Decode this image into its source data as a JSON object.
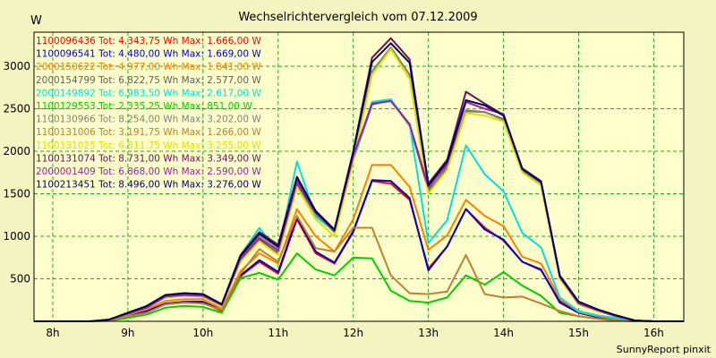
{
  "chart_data": {
    "type": "line",
    "title": "Wechselrichtervergleich vom 07.12.2009",
    "ylabel": "W",
    "xlabel": "",
    "footer": "SunnyReport pinxit",
    "xlim": [
      7.75,
      16.4
    ],
    "ylim": [
      0,
      3400
    ],
    "x_ticks": [
      {
        "label": "8h",
        "value": 8
      },
      {
        "label": "9h",
        "value": 9
      },
      {
        "label": "10h",
        "value": 10
      },
      {
        "label": "11h",
        "value": 11
      },
      {
        "label": "12h",
        "value": 12
      },
      {
        "label": "13h",
        "value": 13
      },
      {
        "label": "14h",
        "value": 14
      },
      {
        "label": "15h",
        "value": 15
      },
      {
        "label": "16h",
        "value": 16
      }
    ],
    "y_ticks": [
      500,
      1000,
      1500,
      2000,
      2500,
      3000
    ],
    "grid": true,
    "legend_position": "top-left",
    "x": [
      7.75,
      8.0,
      8.25,
      8.5,
      8.75,
      9.0,
      9.25,
      9.5,
      9.75,
      10.0,
      10.25,
      10.5,
      10.75,
      11.0,
      11.25,
      11.5,
      11.75,
      12.0,
      12.25,
      12.5,
      12.75,
      13.0,
      13.25,
      13.5,
      13.75,
      14.0,
      14.25,
      14.5,
      14.75,
      15.0,
      15.25,
      15.5,
      15.75,
      16.0,
      16.25,
      16.4
    ],
    "series": [
      {
        "name": "1100096436 Tot: 4.343,75 Wh Max: 1.666,00 W",
        "color": "#ff0000",
        "values": [
          0,
          0,
          0,
          0,
          10,
          70,
          110,
          200,
          220,
          220,
          120,
          530,
          700,
          560,
          1200,
          800,
          680,
          1050,
          1650,
          1620,
          1430,
          620,
          880,
          1320,
          1100,
          950,
          700,
          600,
          240,
          100,
          50,
          20,
          5,
          0,
          0,
          0
        ]
      },
      {
        "name": "1100096541 Tot: 4.480,00 Wh Max: 1.669,00 W",
        "color": "#0000c8",
        "values": [
          0,
          0,
          0,
          0,
          10,
          70,
          120,
          210,
          230,
          230,
          130,
          540,
          720,
          580,
          1220,
          820,
          690,
          1060,
          1660,
          1650,
          1450,
          600,
          880,
          1320,
          1080,
          960,
          700,
          610,
          220,
          100,
          50,
          20,
          5,
          0,
          0,
          0
        ]
      },
      {
        "name": "2000150622 Tot: 4.977,00 Wh Max: 1.841,00 W",
        "color": "#ff8000",
        "values": [
          0,
          0,
          0,
          0,
          10,
          80,
          140,
          240,
          260,
          260,
          150,
          590,
          800,
          680,
          1320,
          1000,
          820,
          1200,
          1840,
          1840,
          1580,
          840,
          1010,
          1430,
          1240,
          1120,
          760,
          680,
          270,
          110,
          60,
          30,
          5,
          0,
          0,
          0
        ]
      },
      {
        "name": "2000154799 Tot: 6.822,75 Wh Max: 2.577,00 W",
        "color": "#606060",
        "values": [
          0,
          0,
          0,
          0,
          20,
          90,
          160,
          280,
          300,
          290,
          180,
          720,
          960,
          800,
          1620,
          1250,
          1050,
          1900,
          2550,
          2600,
          2300,
          1550,
          1800,
          2480,
          2460,
          2380,
          1780,
          1630,
          520,
          200,
          120,
          60,
          10,
          0,
          0,
          0
        ]
      },
      {
        "name": "2000149892 Tot: 6.983,50 Wh Max: 2.617,00 W",
        "color": "#00e0e0",
        "values": [
          0,
          0,
          0,
          0,
          20,
          100,
          170,
          300,
          330,
          320,
          190,
          780,
          1100,
          820,
          1880,
          1230,
          1060,
          1900,
          2580,
          2610,
          2310,
          920,
          1190,
          2070,
          1730,
          1530,
          1040,
          870,
          280,
          120,
          70,
          40,
          10,
          0,
          0,
          0
        ]
      },
      {
        "name": "1100129553 Tot: 2.335,25 Wh Max: 851,00 W",
        "color": "#00d000",
        "values": [
          0,
          0,
          0,
          0,
          5,
          40,
          80,
          160,
          180,
          170,
          100,
          510,
          570,
          490,
          800,
          610,
          540,
          750,
          740,
          360,
          240,
          220,
          280,
          540,
          430,
          580,
          420,
          300,
          100,
          60,
          30,
          10,
          0,
          0,
          0,
          0
        ]
      },
      {
        "name": "1100130966 Tot: 8.254,00 Wh Max: 3.202,00 W",
        "color": "#808080",
        "values": [
          0,
          0,
          0,
          0,
          20,
          100,
          170,
          310,
          320,
          310,
          190,
          760,
          1010,
          860,
          1650,
          1260,
          1060,
          1960,
          2940,
          3220,
          2900,
          1520,
          1830,
          2470,
          2460,
          2370,
          1770,
          1620,
          520,
          220,
          130,
          60,
          10,
          0,
          0,
          0
        ]
      },
      {
        "name": "1100131006 Tot: 3.191,75 Wh Max: 1.266,00 W",
        "color": "#c08030",
        "values": [
          0,
          0,
          0,
          0,
          10,
          60,
          100,
          200,
          220,
          210,
          130,
          560,
          850,
          700,
          1240,
          860,
          820,
          1100,
          1100,
          540,
          330,
          320,
          350,
          780,
          320,
          280,
          290,
          210,
          120,
          60,
          30,
          10,
          0,
          0,
          0,
          0
        ]
      },
      {
        "name": "1100131025 Tot: 6.811,75 Wh Max: 3.255,00 W",
        "color": "#e0e000",
        "values": [
          0,
          0,
          0,
          0,
          20,
          90,
          160,
          280,
          300,
          290,
          180,
          700,
          940,
          780,
          1580,
          1200,
          1000,
          1880,
          2900,
          3200,
          2850,
          1500,
          1780,
          2450,
          2420,
          2350,
          1750,
          1600,
          500,
          200,
          120,
          60,
          10,
          0,
          0,
          0
        ]
      },
      {
        "name": "1100131074 Tot: 8.731,00 Wh Max: 3.349,00 W",
        "color": "#6a1060",
        "values": [
          0,
          0,
          0,
          0,
          20,
          100,
          180,
          310,
          330,
          320,
          200,
          780,
          1050,
          900,
          1700,
          1300,
          1080,
          2000,
          3100,
          3330,
          3080,
          1620,
          1900,
          2700,
          2560,
          2430,
          1800,
          1650,
          540,
          230,
          140,
          70,
          10,
          0,
          0,
          0
        ]
      },
      {
        "name": "2000001409 Tot: 6.868,00 Wh Max: 2.590,00 W",
        "color": "#a020a0",
        "values": [
          0,
          0,
          0,
          0,
          20,
          90,
          160,
          290,
          310,
          300,
          190,
          740,
          980,
          830,
          1640,
          1280,
          1070,
          1940,
          2560,
          2590,
          2320,
          1580,
          1850,
          2580,
          2500,
          2440,
          1790,
          1640,
          520,
          210,
          130,
          60,
          10,
          0,
          0,
          0
        ]
      },
      {
        "name": "1100213451 Tot: 8.496,00 Wh Max: 3.276,00 W",
        "color": "#000060",
        "values": [
          0,
          0,
          0,
          0,
          20,
          100,
          180,
          310,
          330,
          320,
          200,
          770,
          1030,
          880,
          1690,
          1290,
          1070,
          1990,
          3050,
          3270,
          3040,
          1600,
          1880,
          2600,
          2540,
          2420,
          1790,
          1640,
          530,
          230,
          140,
          70,
          10,
          0,
          0,
          0
        ]
      }
    ]
  }
}
